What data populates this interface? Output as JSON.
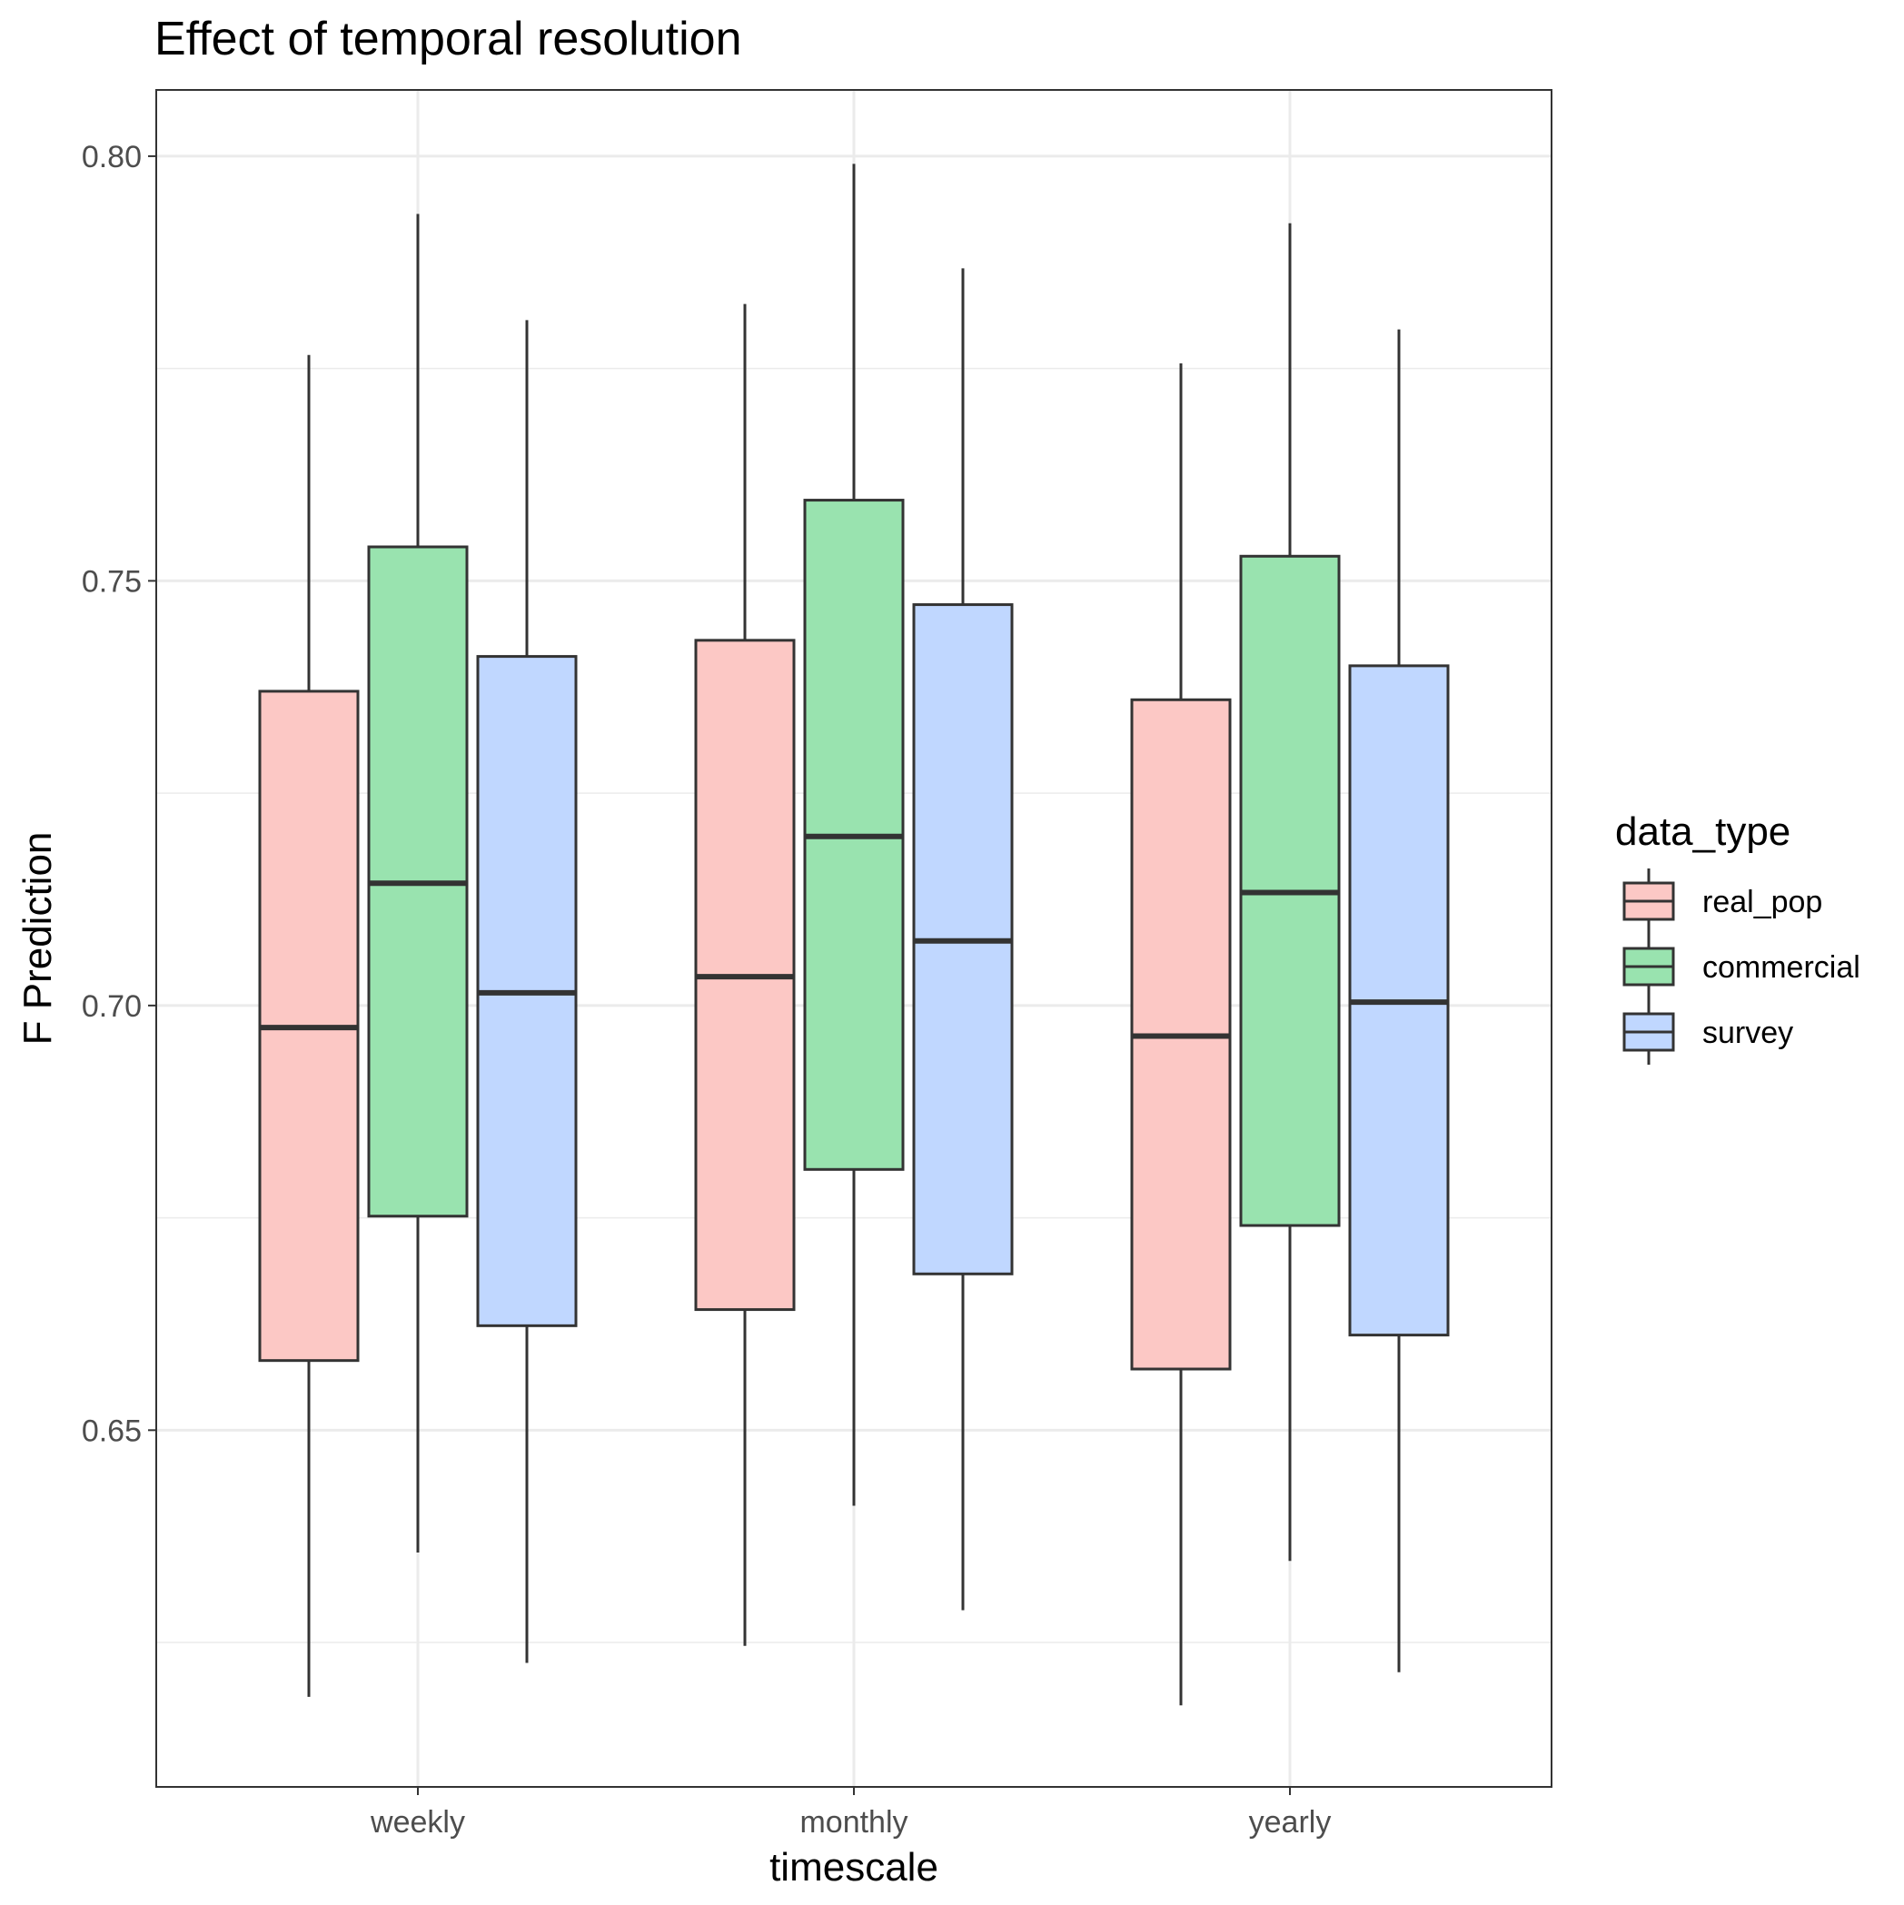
{
  "chart_data": {
    "type": "boxplot",
    "title": "Effect of temporal resolution",
    "xlabel": "timescale",
    "ylabel": "F Prediction",
    "categories": [
      "weekly",
      "monthly",
      "yearly"
    ],
    "ylim": [
      0.608,
      0.8078
    ],
    "yticks": [
      0.65,
      0.7,
      0.75,
      0.8
    ],
    "ytick_labels": [
      "0.65",
      "0.70",
      "0.75",
      "0.80"
    ],
    "grid": true,
    "legend": {
      "title": "data_type",
      "position": "right"
    },
    "series": [
      {
        "name": "real_pop",
        "color": "#F8766D",
        "stats": [
          {
            "min": 0.6186,
            "q1": 0.6582,
            "median": 0.6974,
            "q3": 0.737,
            "max": 0.7766
          },
          {
            "min": 0.6246,
            "q1": 0.6642,
            "median": 0.7034,
            "q3": 0.743,
            "max": 0.7826
          },
          {
            "min": 0.6176,
            "q1": 0.6572,
            "median": 0.6964,
            "q3": 0.736,
            "max": 0.7756
          }
        ]
      },
      {
        "name": "commercial",
        "color": "#00BA38",
        "stats": [
          {
            "min": 0.6356,
            "q1": 0.6752,
            "median": 0.7144,
            "q3": 0.754,
            "max": 0.7932
          },
          {
            "min": 0.6411,
            "q1": 0.6807,
            "median": 0.7199,
            "q3": 0.7595,
            "max": 0.7991
          },
          {
            "min": 0.6346,
            "q1": 0.6741,
            "median": 0.7133,
            "q3": 0.7529,
            "max": 0.7921
          }
        ]
      },
      {
        "name": "survey",
        "color": "#619CFF",
        "stats": [
          {
            "min": 0.6226,
            "q1": 0.6623,
            "median": 0.7015,
            "q3": 0.7411,
            "max": 0.7807
          },
          {
            "min": 0.6288,
            "q1": 0.6684,
            "median": 0.7076,
            "q3": 0.7472,
            "max": 0.7868
          },
          {
            "min": 0.6215,
            "q1": 0.6612,
            "median": 0.7004,
            "q3": 0.74,
            "max": 0.7796
          }
        ]
      }
    ]
  }
}
